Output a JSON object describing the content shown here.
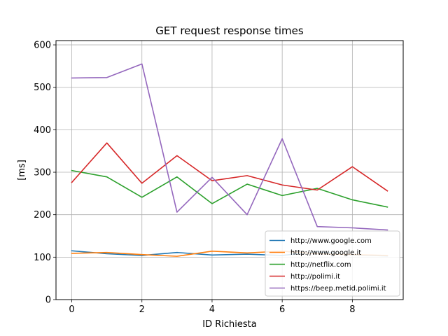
{
  "chart_data": {
    "type": "line",
    "title": "GET request response times",
    "xlabel": "ID Richiesta",
    "ylabel": "[ms]",
    "xlim": [
      -0.45,
      9.45
    ],
    "ylim": [
      0,
      610
    ],
    "xticks": [
      0,
      2,
      4,
      6,
      8
    ],
    "yticks": [
      0,
      100,
      200,
      300,
      400,
      500,
      600
    ],
    "grid": true,
    "legend_position": "lower-right",
    "x": [
      0,
      1,
      2,
      3,
      4,
      5,
      6,
      7,
      8,
      9
    ],
    "series": [
      {
        "name": "http://www.google.com",
        "color": "#1f77b4",
        "values": [
          115,
          108,
          104,
          111,
          105,
          107,
          104,
          113,
          105,
          103
        ]
      },
      {
        "name": "http://www.google.it",
        "color": "#ff7f0e",
        "values": [
          109,
          111,
          106,
          102,
          114,
          110,
          114,
          108,
          106,
          104
        ]
      },
      {
        "name": "http://netflix.com",
        "color": "#2ca02c",
        "values": [
          304,
          289,
          241,
          289,
          226,
          272,
          245,
          262,
          235,
          218
        ]
      },
      {
        "name": "http://polimi.it",
        "color": "#d62728",
        "values": [
          276,
          369,
          274,
          339,
          280,
          292,
          270,
          258,
          313,
          256
        ]
      },
      {
        "name": "https://beep.metid.polimi.it",
        "color": "#9467bd",
        "values": [
          522,
          523,
          555,
          206,
          288,
          200,
          379,
          172,
          169,
          164
        ]
      }
    ]
  }
}
